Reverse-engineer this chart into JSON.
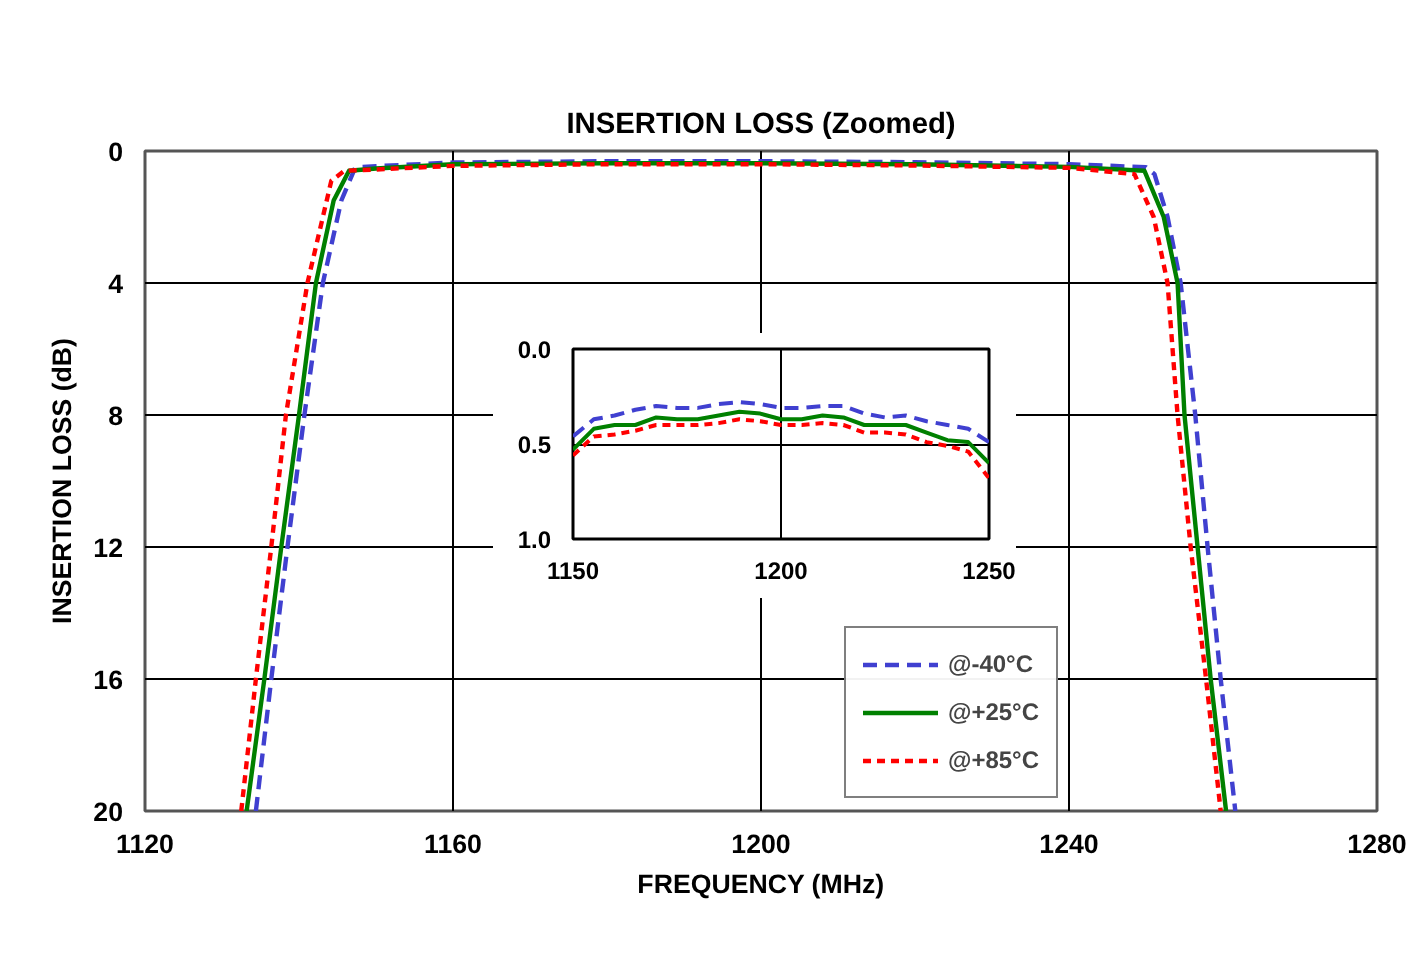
{
  "chart_data": [
    {
      "type": "line",
      "title": "INSERTION LOSS (Zoomed)",
      "xlabel": "FREQUENCY (MHz)",
      "ylabel": "INSERTION LOSS (dB)",
      "xlim": [
        1120,
        1280
      ],
      "ylim": [
        20,
        0
      ],
      "xticks": [
        1120,
        1160,
        1200,
        1240,
        1280
      ],
      "yticks": [
        0,
        4,
        8,
        12,
        16,
        20
      ],
      "grid": true,
      "legend": "bottom right",
      "series": [
        {
          "name": "@-40°C",
          "color": "#4040d0",
          "line_style": "dashed",
          "x": [
            1134.4,
            1136.4,
            1138.5,
            1140.7,
            1143.1,
            1145.5,
            1147.3,
            1150,
            1160,
            1180,
            1200,
            1220,
            1240,
            1250,
            1251.1,
            1252.8,
            1254.5,
            1256.4,
            1258,
            1259.7,
            1261.6
          ],
          "values": [
            20,
            16,
            12,
            8,
            4,
            1.5,
            0.5,
            0.46,
            0.35,
            0.31,
            0.31,
            0.34,
            0.4,
            0.49,
            0.7,
            2,
            4,
            8,
            12,
            16,
            20
          ]
        },
        {
          "name": "@+25°C",
          "color": "#008000",
          "line_style": "solid",
          "x": [
            1133.2,
            1135.5,
            1137.7,
            1140,
            1142.2,
            1144.5,
            1146.5,
            1150,
            1160,
            1180,
            1200,
            1220,
            1240,
            1249.8,
            1252.3,
            1254.1,
            1255,
            1256.7,
            1258.4,
            1260.4
          ],
          "values": [
            20,
            16,
            12,
            8,
            4,
            1.5,
            0.6,
            0.53,
            0.4,
            0.37,
            0.37,
            0.4,
            0.48,
            0.6,
            2,
            4,
            8,
            12,
            16,
            20
          ]
        },
        {
          "name": "@+85°C",
          "color": "#ff0000",
          "line_style": "dotted",
          "x": [
            1132.5,
            1134.4,
            1136.4,
            1138.3,
            1141.1,
            1144.2,
            1145.9,
            1150,
            1160,
            1180,
            1200,
            1220,
            1240,
            1248.5,
            1251,
            1252.8,
            1254.1,
            1255.8,
            1257.8,
            1259.7
          ],
          "values": [
            20,
            16,
            12,
            8,
            4,
            0.9,
            0.6,
            0.56,
            0.45,
            0.4,
            0.4,
            0.44,
            0.51,
            0.7,
            2,
            4,
            8,
            12,
            16,
            20
          ]
        }
      ]
    },
    {
      "type": "line",
      "xlim": [
        1150,
        1250
      ],
      "ylim": [
        1.0,
        0.0
      ],
      "xticks": [
        1150,
        1200,
        1250
      ],
      "yticks": [
        {
          "value": 0,
          "label": "0.0"
        },
        {
          "value": 0.5,
          "label": "0.5"
        },
        {
          "value": 1,
          "label": "1.0"
        }
      ],
      "grid": true,
      "x": [
        1150,
        1155,
        1160,
        1165,
        1170,
        1175,
        1180,
        1185,
        1190,
        1195,
        1200,
        1205,
        1210,
        1215,
        1220,
        1225,
        1230,
        1235,
        1240,
        1245,
        1250
      ],
      "series": [
        {
          "color": "#4040d0",
          "line_style": "dashed",
          "values": [
            0.46,
            0.37,
            0.35,
            0.32,
            0.3,
            0.31,
            0.31,
            0.29,
            0.28,
            0.29,
            0.31,
            0.31,
            0.3,
            0.3,
            0.34,
            0.36,
            0.35,
            0.38,
            0.4,
            0.42,
            0.49
          ]
        },
        {
          "color": "#008000",
          "line_style": "solid",
          "values": [
            0.53,
            0.42,
            0.4,
            0.4,
            0.36,
            0.37,
            0.37,
            0.35,
            0.33,
            0.34,
            0.37,
            0.37,
            0.35,
            0.36,
            0.4,
            0.4,
            0.4,
            0.44,
            0.48,
            0.49,
            0.6
          ]
        },
        {
          "color": "#ff0000",
          "line_style": "dotted",
          "values": [
            0.56,
            0.46,
            0.45,
            0.43,
            0.4,
            0.4,
            0.4,
            0.39,
            0.37,
            0.38,
            0.4,
            0.4,
            0.39,
            0.4,
            0.44,
            0.44,
            0.45,
            0.49,
            0.51,
            0.54,
            0.68
          ]
        }
      ]
    }
  ]
}
